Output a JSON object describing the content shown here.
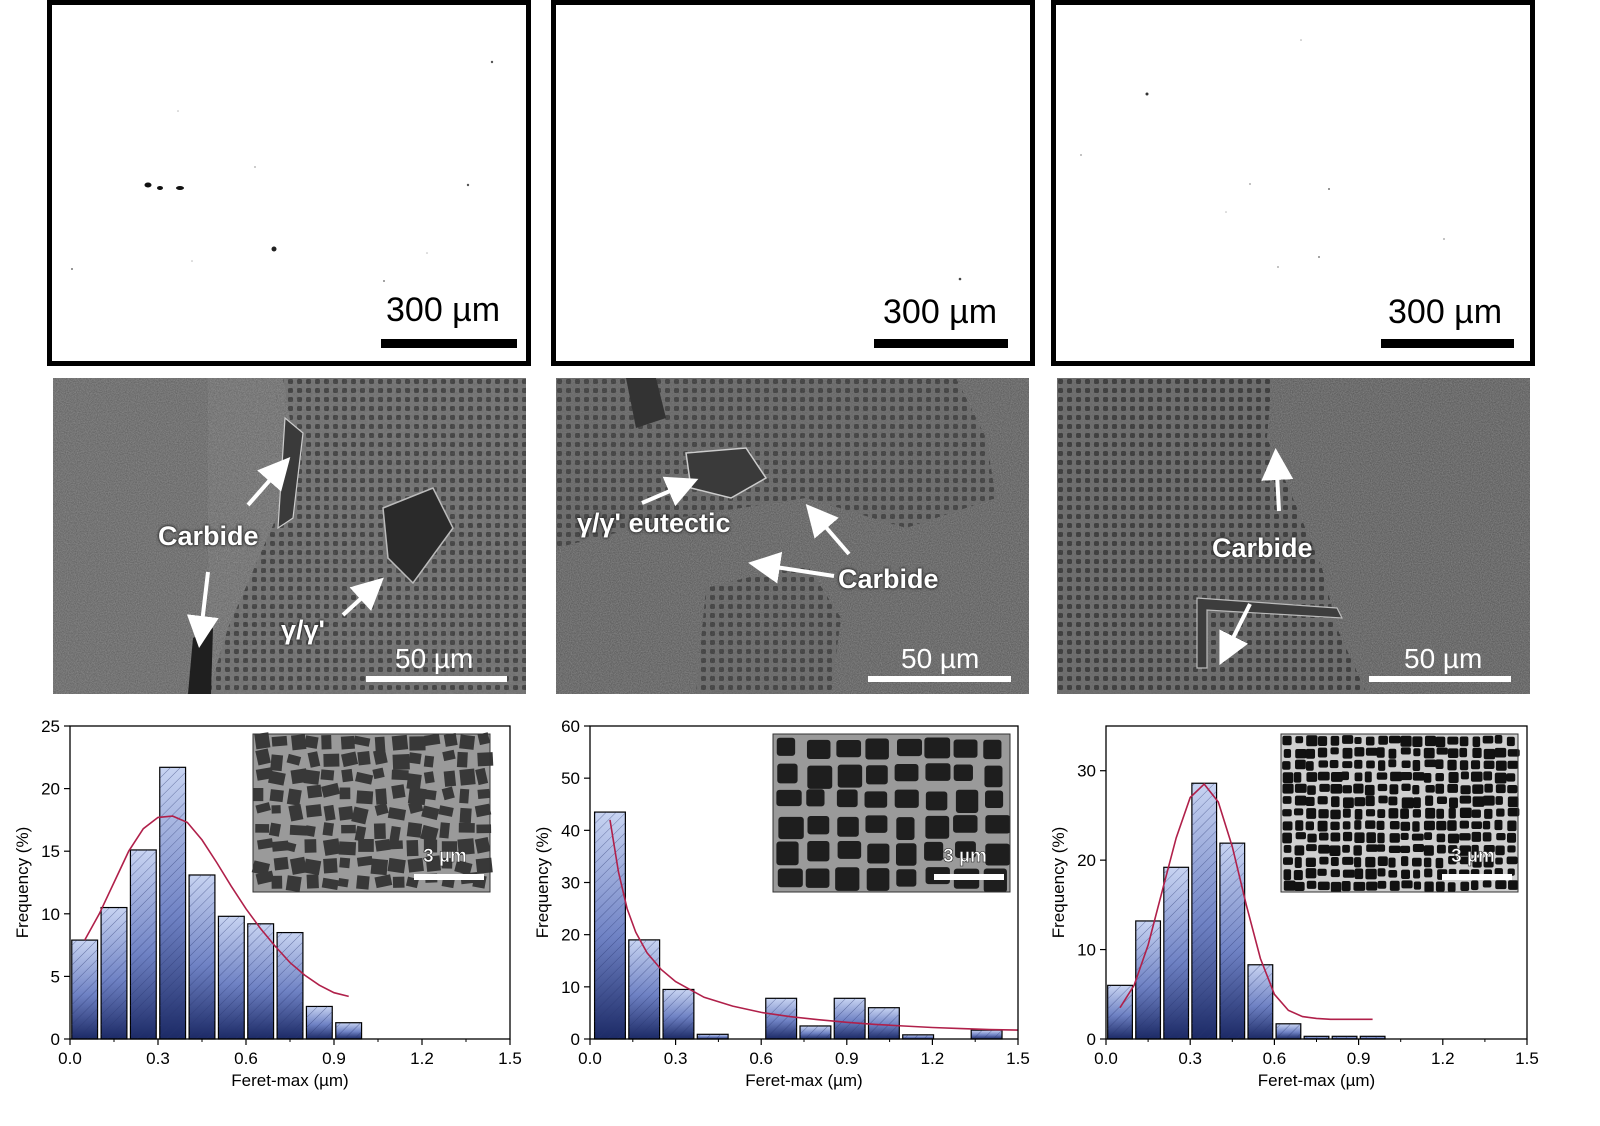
{
  "om_panels": [
    {
      "scale": "300 µm"
    },
    {
      "scale": "300 µm"
    },
    {
      "scale": "300 µm"
    }
  ],
  "sem_panels": [
    {
      "scale": "50 µm",
      "labels": [
        "Carbide",
        "γ/γ'"
      ]
    },
    {
      "scale": "50 µm",
      "labels": [
        "γ/γ' eutectic",
        "Carbide"
      ]
    },
    {
      "scale": "50 µm",
      "labels": [
        "Carbide"
      ]
    }
  ],
  "chart_data": [
    {
      "type": "bar",
      "xlabel": "Feret-max (µm)",
      "ylabel": "Frequency (%)",
      "xlim": [
        0,
        1.5
      ],
      "ylim": [
        0,
        25
      ],
      "xticks": [
        "0.0",
        "0.3",
        "0.6",
        "0.9",
        "1.2",
        "1.5"
      ],
      "yticks": [
        "0",
        "5",
        "10",
        "15",
        "20",
        "25"
      ],
      "bin_width": 0.1,
      "x": [
        0.05,
        0.15,
        0.25,
        0.35,
        0.45,
        0.55,
        0.65,
        0.75,
        0.85,
        0.95
      ],
      "values": [
        7.9,
        10.5,
        15.1,
        21.7,
        13.1,
        9.8,
        9.2,
        8.5,
        2.6,
        1.3
      ],
      "fit": {
        "x": [
          0.05,
          0.1,
          0.15,
          0.2,
          0.25,
          0.3,
          0.35,
          0.4,
          0.45,
          0.5,
          0.55,
          0.6,
          0.65,
          0.7,
          0.75,
          0.8,
          0.85,
          0.9,
          0.95
        ],
        "y": [
          7.9,
          10.0,
          12.5,
          15.0,
          16.8,
          17.7,
          17.8,
          17.3,
          15.9,
          14.1,
          12.2,
          10.4,
          8.8,
          7.4,
          6.1,
          5.1,
          4.3,
          3.7,
          3.4
        ]
      },
      "inset_scale": "3 µm"
    },
    {
      "type": "bar",
      "xlabel": "Feret-max (µm)",
      "ylabel": "Frequency (%)",
      "xlim": [
        0,
        1.5
      ],
      "ylim": [
        0,
        60
      ],
      "xticks": [
        "0.0",
        "0.3",
        "0.6",
        "0.9",
        "1.2",
        "1.5"
      ],
      "yticks": [
        "0",
        "10",
        "20",
        "30",
        "40",
        "50",
        "60"
      ],
      "bin_width": 0.12,
      "x": [
        0.07,
        0.19,
        0.31,
        0.43,
        0.55,
        0.67,
        0.79,
        0.91,
        1.03,
        1.15,
        1.27,
        1.39
      ],
      "values": [
        43.5,
        19.0,
        9.5,
        0.9,
        0,
        7.8,
        2.5,
        7.8,
        6.0,
        0.8,
        0,
        1.7
      ],
      "fit": {
        "x": [
          0.07,
          0.1,
          0.13,
          0.16,
          0.2,
          0.25,
          0.3,
          0.4,
          0.5,
          0.6,
          0.7,
          0.8,
          0.9,
          1.0,
          1.1,
          1.2,
          1.3,
          1.4,
          1.5
        ],
        "y": [
          42.0,
          32.0,
          25.0,
          20.5,
          16.5,
          13.3,
          11.0,
          8.0,
          6.3,
          5.1,
          4.3,
          3.7,
          3.2,
          2.8,
          2.5,
          2.2,
          2.0,
          1.8,
          1.7
        ]
      },
      "inset_scale": "3 µm"
    },
    {
      "type": "bar",
      "xlabel": "Feret-max (µm)",
      "ylabel": "Frequency (%)",
      "xlim": [
        0,
        1.5
      ],
      "ylim": [
        0,
        35
      ],
      "xticks": [
        "0.0",
        "0.3",
        "0.6",
        "0.9",
        "1.2",
        "1.5"
      ],
      "yticks": [
        "0",
        "10",
        "20",
        "30"
      ],
      "bin_width": 0.1,
      "x": [
        0.05,
        0.15,
        0.25,
        0.35,
        0.45,
        0.55,
        0.65,
        0.75,
        0.85,
        0.95
      ],
      "values": [
        6.0,
        13.2,
        19.2,
        28.6,
        21.9,
        8.3,
        1.7,
        0.3,
        0.3,
        0.3
      ],
      "fit": {
        "x": [
          0.05,
          0.1,
          0.15,
          0.2,
          0.25,
          0.3,
          0.35,
          0.4,
          0.45,
          0.5,
          0.55,
          0.6,
          0.65,
          0.7,
          0.75,
          0.8,
          0.85,
          0.9,
          0.95
        ],
        "y": [
          3.5,
          6.0,
          10.5,
          16.5,
          22.5,
          27.0,
          28.5,
          26.5,
          21.5,
          15.0,
          9.0,
          5.0,
          3.2,
          2.5,
          2.3,
          2.2,
          2.2,
          2.2,
          2.2
        ]
      },
      "inset_scale": "3 µm"
    }
  ]
}
